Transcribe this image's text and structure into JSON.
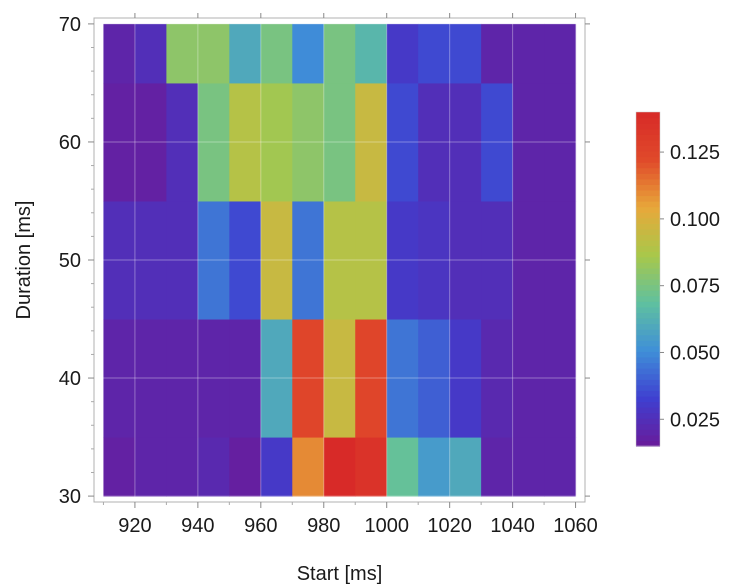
{
  "chart_data": {
    "type": "heatmap",
    "title": "",
    "xlabel": "Start [ms]",
    "ylabel": "Duration [ms]",
    "x_bins": [
      910,
      920,
      930,
      940,
      950,
      960,
      970,
      980,
      990,
      1000,
      1010,
      1020,
      1030,
      1040,
      1050,
      1060
    ],
    "y_bins": [
      30,
      35,
      45,
      55,
      65,
      70
    ],
    "xlim": [
      907,
      1063
    ],
    "ylim": [
      29.5,
      70.5
    ],
    "x_ticks": [
      920,
      940,
      960,
      980,
      1000,
      1020,
      1040,
      1060
    ],
    "y_ticks": [
      30,
      40,
      50,
      60,
      70
    ],
    "values": [
      [
        0.018,
        0.02,
        0.02,
        0.022,
        0.017,
        0.03,
        0.11,
        0.14,
        0.135,
        0.07,
        0.055,
        0.06,
        0.02,
        0.02,
        0.02
      ],
      [
        0.02,
        0.02,
        0.02,
        0.02,
        0.02,
        0.06,
        0.125,
        0.095,
        0.125,
        0.045,
        0.04,
        0.03,
        0.022,
        0.02,
        0.02
      ],
      [
        0.025,
        0.025,
        0.025,
        0.045,
        0.035,
        0.095,
        0.045,
        0.09,
        0.09,
        0.03,
        0.028,
        0.025,
        0.025,
        0.02,
        0.02
      ],
      [
        0.018,
        0.018,
        0.025,
        0.075,
        0.09,
        0.085,
        0.08,
        0.075,
        0.095,
        0.035,
        0.025,
        0.025,
        0.035,
        0.02,
        0.02
      ],
      [
        0.02,
        0.025,
        0.08,
        0.08,
        0.06,
        0.075,
        0.05,
        0.075,
        0.065,
        0.03,
        0.035,
        0.035,
        0.02,
        0.02,
        0.02
      ]
    ],
    "colorbar": {
      "min": 0.015,
      "max": 0.14,
      "ticks": [
        0.025,
        0.05,
        0.075,
        0.1,
        0.125
      ],
      "tick_labels": [
        "0.025",
        "0.050",
        "0.075",
        "0.100",
        "0.125"
      ]
    },
    "colormap": [
      "#6a1b9a",
      "#3f3fd0",
      "#3f8fd8",
      "#5fc0a0",
      "#a8c84a",
      "#e8a83a",
      "#e04a2a",
      "#d82a28"
    ],
    "grid": true,
    "legend": "colorbar-right"
  }
}
